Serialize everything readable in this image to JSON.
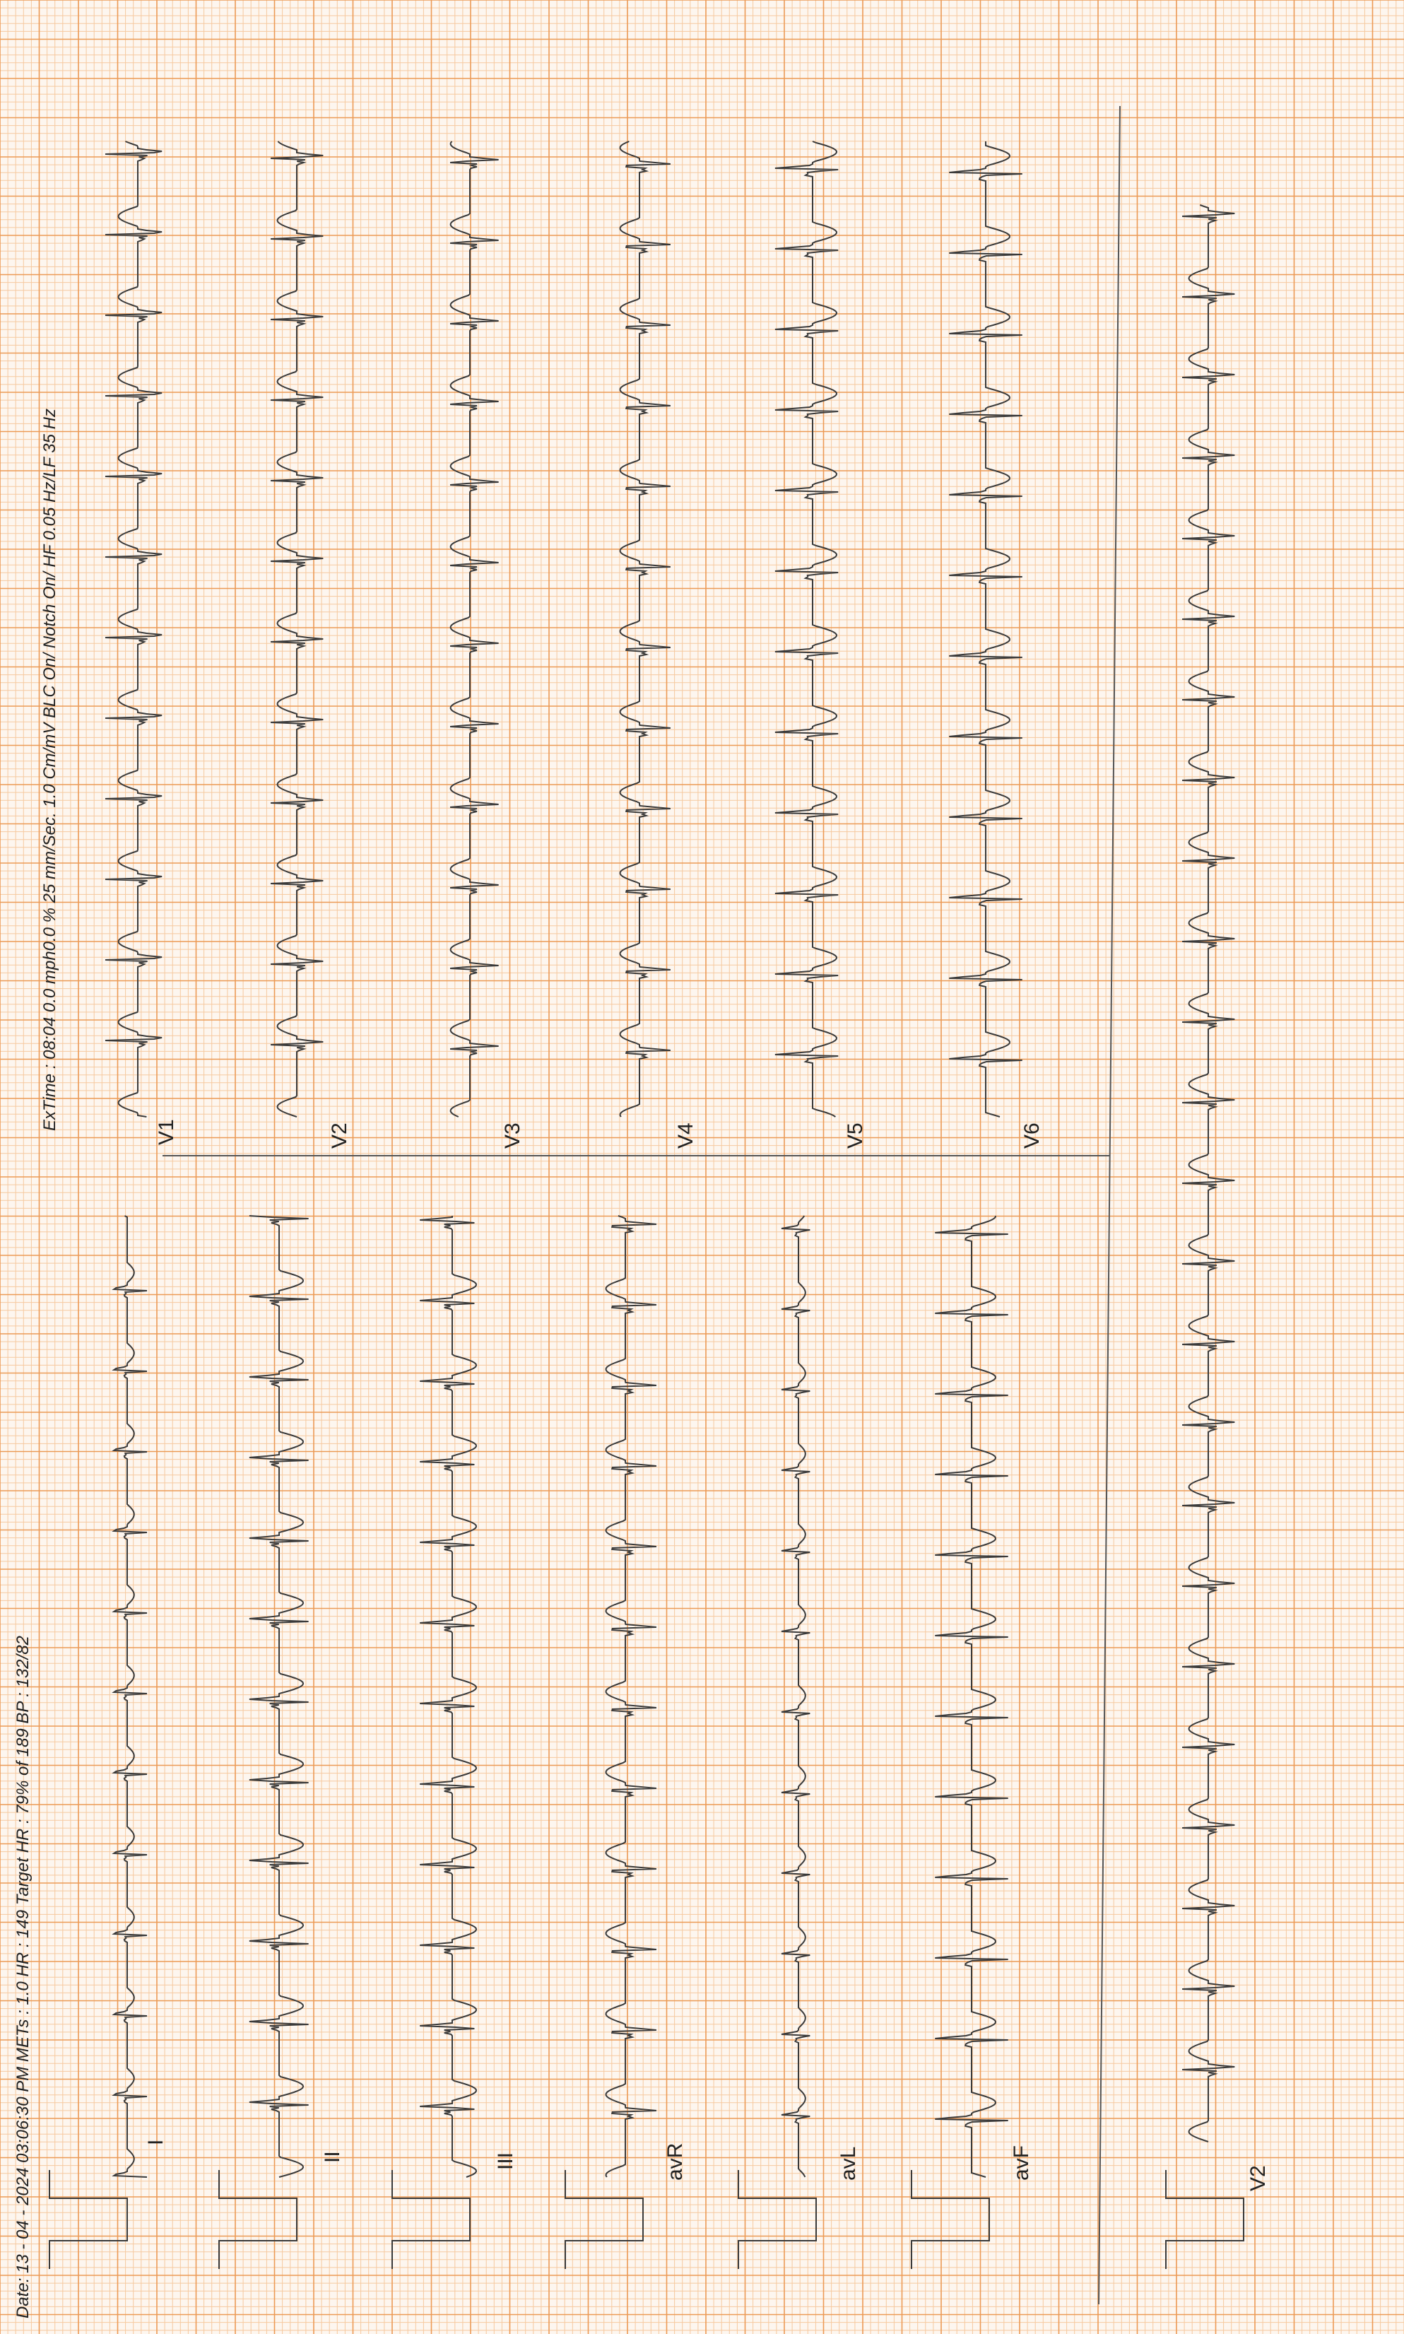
{
  "header": {
    "left": "Date: 13 - 04 - 2024 03:06:30 PM  METs : 1.0 HR : 149 Target HR : 79% of 189 BP : 132/82",
    "right": "ExTime : 08:04   0.0 mph0.0 % 25 mm/Sec. 1.0 Cm/mV BLC On/  Notch On/ HF 0.05 Hz/LF 35   Hz"
  },
  "leads_lower": [
    "I",
    "II",
    "III",
    "avR",
    "avL",
    "avF"
  ],
  "leads_upper": [
    "V1",
    "V2",
    "V3",
    "V4",
    "V5",
    "V6"
  ],
  "rhythm_lead": "V2",
  "colors": {
    "paper": "#fdf6ef",
    "grid_minor": "#f6c99f",
    "grid_major": "#ec9a55",
    "trace": "#3a3a3a"
  }
}
